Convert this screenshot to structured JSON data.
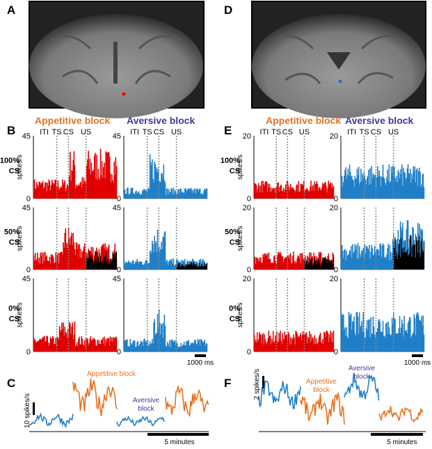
{
  "labels": {
    "a": "A",
    "b": "B",
    "c": "C",
    "d": "D",
    "e": "E",
    "f": "F"
  },
  "left": {
    "appetitive": "Appetitive block",
    "aversive": "Aversive block",
    "events": [
      "ITI",
      "TS",
      "CS",
      "US"
    ],
    "rows": [
      {
        "pct": "100%",
        "cs": "CS"
      },
      {
        "pct": "50%",
        "cs": "CS"
      },
      {
        "pct": "0%",
        "cs": "CS"
      }
    ],
    "ymax": "45",
    "ymin": "0",
    "ylabel": "spikes/s",
    "scale": "1000 ms"
  },
  "right": {
    "appetitive": "Appetitive block",
    "aversive": "Aversive block",
    "events": [
      "ITI",
      "TS",
      "CS",
      "US"
    ],
    "rows": [
      {
        "pct": "100%",
        "cs": "CS"
      },
      {
        "pct": "50%",
        "cs": "CS"
      },
      {
        "pct": "0%",
        "cs": "CS"
      }
    ],
    "ymax": "20",
    "ymin": "0",
    "ylabel": "spikes/s",
    "scale": "1000 ms"
  },
  "bottom_left": {
    "ylabel": "10 spikes/s",
    "appetitive": [
      "Appetitive block"
    ],
    "aversive": [
      "Aversive",
      "block"
    ],
    "scale": "5  minutes"
  },
  "bottom_right": {
    "ylabel": "2 spikes/s",
    "appetitive": [
      "Appetitive",
      "block"
    ],
    "aversive": [
      "Aversive",
      "block"
    ],
    "scale": "5 minutes"
  }
}
